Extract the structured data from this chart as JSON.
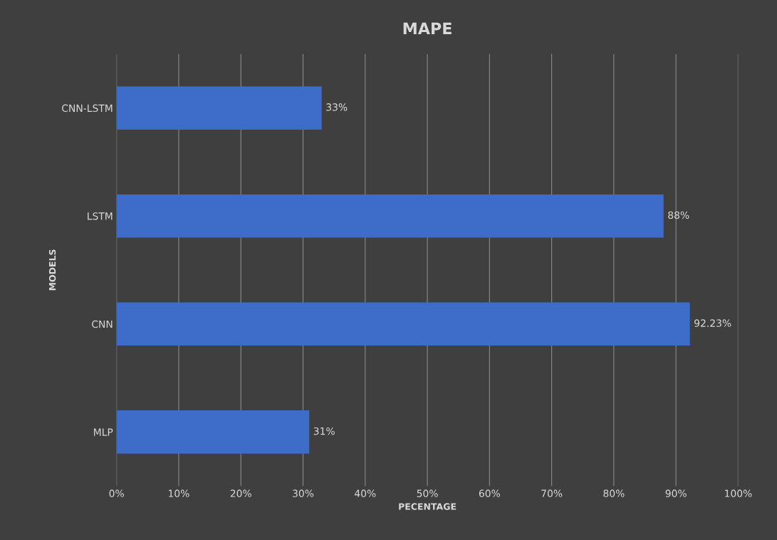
{
  "chart_data": {
    "type": "bar",
    "orientation": "horizontal",
    "title": "MAPE",
    "xlabel": "PECENTAGE",
    "ylabel": "MODELS",
    "categories": [
      "CNN-LSTM",
      "LSTM",
      "CNN",
      "MLP"
    ],
    "values": [
      33,
      88,
      92.23,
      31
    ],
    "value_labels": [
      "33%",
      "88%",
      "92.23%",
      "31%"
    ],
    "color": "#3d6cc9",
    "xlim": [
      0,
      100
    ],
    "xticks": [
      {
        "value": 0,
        "label": "0%"
      },
      {
        "value": 10,
        "label": "10%"
      },
      {
        "value": 20,
        "label": "20%"
      },
      {
        "value": 30,
        "label": "30%"
      },
      {
        "value": 40,
        "label": "40%"
      },
      {
        "value": 50,
        "label": "50%"
      },
      {
        "value": 60,
        "label": "60%"
      },
      {
        "value": 70,
        "label": "70%"
      },
      {
        "value": 80,
        "label": "80%"
      },
      {
        "value": 90,
        "label": "90%"
      },
      {
        "value": 100,
        "label": "100%"
      }
    ],
    "grid": "x"
  }
}
